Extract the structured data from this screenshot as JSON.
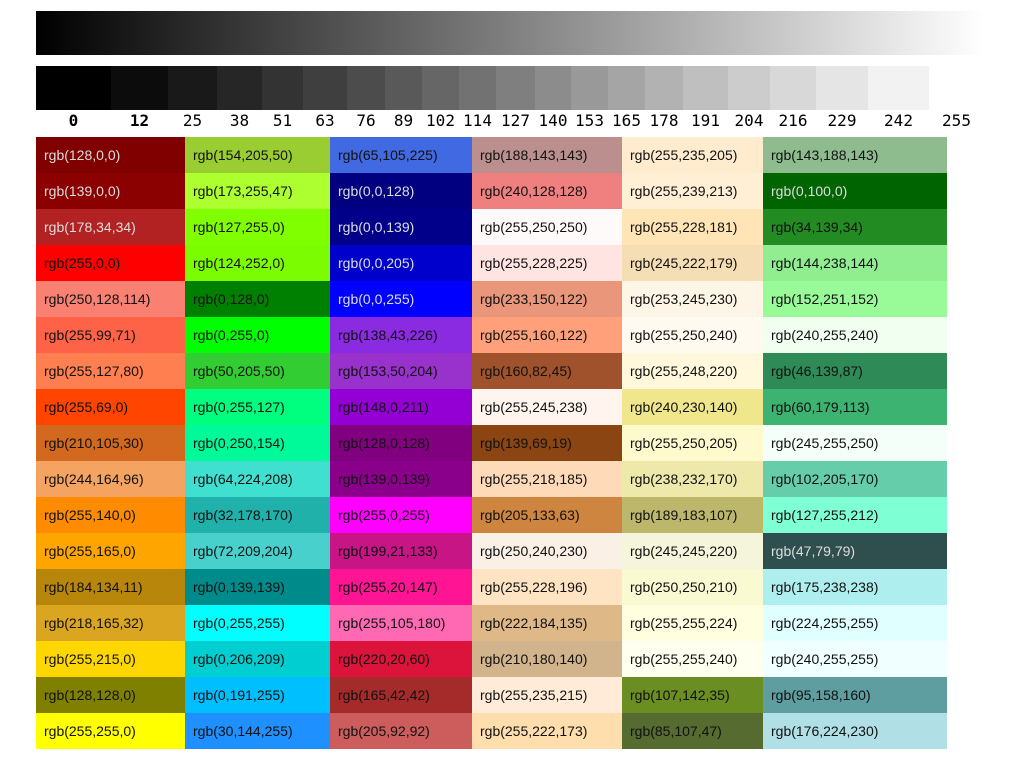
{
  "gray_steps": [
    0,
    12,
    25,
    38,
    51,
    63,
    76,
    89,
    102,
    114,
    127,
    140,
    153,
    165,
    178,
    191,
    204,
    216,
    229,
    242,
    255
  ],
  "columns": [
    {
      "cells": [
        "rgb(128,0,0)",
        "rgb(139,0,0)",
        "rgb(178,34,34)",
        "rgb(255,0,0)",
        "rgb(250,128,114)",
        "rgb(255,99,71)",
        "rgb(255,127,80)",
        "rgb(255,69,0)",
        "rgb(210,105,30)",
        "rgb(244,164,96)",
        "rgb(255,140,0)",
        "rgb(255,165,0)",
        "rgb(184,134,11)",
        "rgb(218,165,32)",
        "rgb(255,215,0)",
        "rgb(128,128,0)",
        "rgb(255,255,0)"
      ]
    },
    {
      "cells": [
        "rgb(154,205,50)",
        "rgb(173,255,47)",
        "rgb(127,255,0)",
        "rgb(124,252,0)",
        "rgb(0,128,0)",
        "rgb(0,255,0)",
        "rgb(50,205,50)",
        "rgb(0,255,127)",
        "rgb(0,250,154)",
        "rgb(64,224,208)",
        "rgb(32,178,170)",
        "rgb(72,209,204)",
        "rgb(0,139,139)",
        "rgb(0,255,255)",
        "rgb(0,206,209)",
        "rgb(0,191,255)",
        "rgb(30,144,255)"
      ]
    },
    {
      "cells": [
        "rgb(65,105,225)",
        "rgb(0,0,128)",
        "rgb(0,0,139)",
        "rgb(0,0,205)",
        "rgb(0,0,255)",
        "rgb(138,43,226)",
        "rgb(153,50,204)",
        "rgb(148,0,211)",
        "rgb(128,0,128)",
        "rgb(139,0,139)",
        "rgb(255,0,255)",
        "rgb(199,21,133)",
        "rgb(255,20,147)",
        "rgb(255,105,180)",
        "rgb(220,20,60)",
        "rgb(165,42,42)",
        "rgb(205,92,92)"
      ]
    },
    {
      "cells": [
        "rgb(188,143,143)",
        "rgb(240,128,128)",
        "rgb(255,250,250)",
        "rgb(255,228,225)",
        "rgb(233,150,122)",
        "rgb(255,160,122)",
        "rgb(160,82,45)",
        "rgb(255,245,238)",
        "rgb(139,69,19)",
        "rgb(255,218,185)",
        "rgb(205,133,63)",
        "rgb(250,240,230)",
        "rgb(255,228,196)",
        "rgb(222,184,135)",
        "rgb(210,180,140)",
        "rgb(255,235,215)",
        "rgb(255,222,173)"
      ]
    },
    {
      "cells": [
        "rgb(255,235,205)",
        "rgb(255,239,213)",
        "rgb(255,228,181)",
        "rgb(245,222,179)",
        "rgb(253,245,230)",
        "rgb(255,250,240)",
        "rgb(255,248,220)",
        "rgb(240,230,140)",
        "rgb(255,250,205)",
        "rgb(238,232,170)",
        "rgb(189,183,107)",
        "rgb(245,245,220)",
        "rgb(250,250,210)",
        "rgb(255,255,224)",
        "rgb(255,255,240)",
        "rgb(107,142,35)",
        "rgb(85,107,47)"
      ]
    },
    {
      "cells": [
        "rgb(143,188,143)",
        "rgb(0,100,0)",
        "rgb(34,139,34)",
        "rgb(144,238,144)",
        "rgb(152,251,152)",
        "rgb(240,255,240)",
        "rgb(46,139,87)",
        "rgb(60,179,113)",
        "rgb(245,255,250)",
        "rgb(102,205,170)",
        "rgb(127,255,212)",
        "rgb(47,79,79)",
        "rgb(175,238,238)",
        "rgb(224,255,255)",
        "rgb(240,255,255)",
        "rgb(95,158,160)",
        "rgb(176,224,230)"
      ]
    }
  ],
  "light_text": [
    "rgb(128,0,0)",
    "rgb(139,0,0)",
    "rgb(178,34,34)",
    "rgb(0,0,128)",
    "rgb(0,0,139)",
    "rgb(0,0,205)",
    "rgb(0,0,255)",
    "rgb(0,100,0)",
    "rgb(47,79,79)"
  ]
}
